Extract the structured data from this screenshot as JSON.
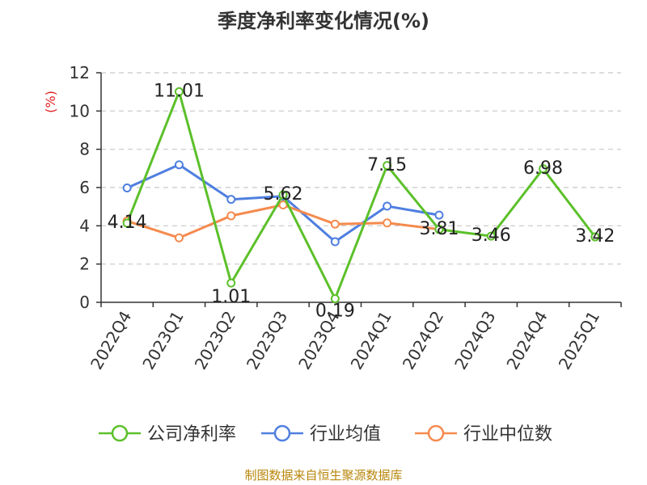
{
  "chart_data": {
    "type": "line",
    "title": "季度净利率变化情况(%)",
    "ylabel": "(%)",
    "xlabel": "",
    "ylim": [
      0,
      12
    ],
    "yticks": [
      0,
      2,
      4,
      6,
      8,
      10,
      12
    ],
    "grid": true,
    "legend_position": "bottom",
    "categories": [
      "2022Q4",
      "2023Q1",
      "2023Q2",
      "2023Q3",
      "2023Q4",
      "2024Q1",
      "2024Q2",
      "2024Q3",
      "2024Q4",
      "2025Q1"
    ],
    "series": [
      {
        "name": "公司净利率",
        "color": "#5cc02a",
        "values": [
          4.14,
          11.01,
          1.01,
          5.62,
          0.19,
          7.15,
          3.81,
          3.46,
          6.98,
          3.42
        ],
        "labels": [
          "4.14",
          "11.01",
          "1.01",
          "5.62",
          "0.19",
          "7.15",
          "3.81",
          "3.46",
          "6.98",
          "3.42"
        ]
      },
      {
        "name": "行业均值",
        "color": "#4f7fe0",
        "values": [
          5.98,
          7.19,
          5.38,
          5.55,
          3.17,
          5.03,
          4.56,
          null,
          null,
          null
        ]
      },
      {
        "name": "行业中位数",
        "color": "#f58a4e",
        "values": [
          4.25,
          3.37,
          4.52,
          5.09,
          4.09,
          4.15,
          3.82,
          null,
          null,
          null
        ]
      }
    ],
    "source": "制图数据来自恒生聚源数据库"
  }
}
